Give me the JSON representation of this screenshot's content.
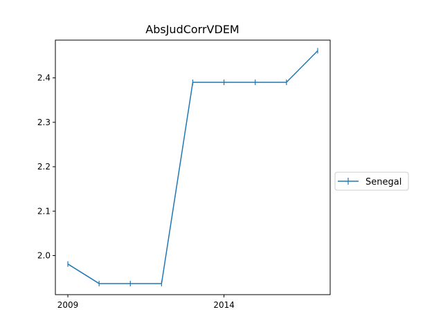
{
  "chart_data": {
    "type": "line",
    "title": "AbsJudCorrVDEM",
    "xlabel": "",
    "ylabel": "",
    "x": [
      2009,
      2010,
      2011,
      2012,
      2013,
      2014,
      2015,
      2016,
      2017
    ],
    "series": [
      {
        "name": "Senegal",
        "values": [
          1.981,
          1.937,
          1.937,
          1.937,
          2.39,
          2.39,
          2.39,
          2.39,
          2.461
        ],
        "color": "#1f77b4",
        "marker": "vertical-tick"
      }
    ],
    "xlim": [
      2008.6,
      2017.4
    ],
    "ylim": [
      1.912,
      2.485
    ],
    "xticks": [
      2009,
      2014
    ],
    "yticks": [
      2.0,
      2.1,
      2.2,
      2.3,
      2.4
    ],
    "ytick_labels": [
      "2.0",
      "2.1",
      "2.2",
      "2.3",
      "2.4"
    ],
    "grid": false,
    "legend_position": "center-right outside"
  }
}
